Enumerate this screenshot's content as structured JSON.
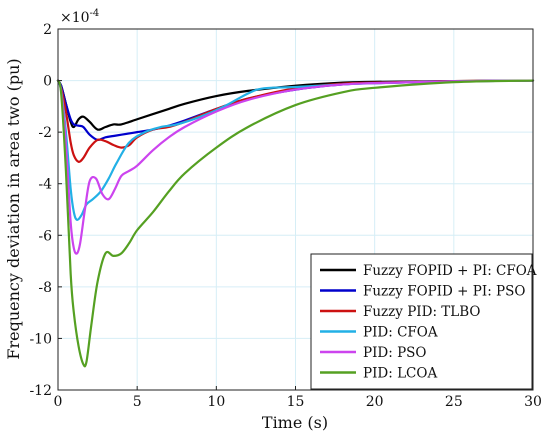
{
  "chart_data": {
    "type": "line",
    "xlabel": "Time (s)",
    "ylabel": "Frequency deviation in area two (pu)",
    "exponent_label": "×10",
    "exponent_power": "-4",
    "xlim": [
      0,
      30
    ],
    "ylim": [
      -12,
      2
    ],
    "xticks": [
      0,
      5,
      10,
      15,
      20,
      25,
      30
    ],
    "yticks": [
      2,
      0,
      -2,
      -4,
      -6,
      -8,
      -10,
      -12
    ],
    "grid": true,
    "legend_position": "bottom-right",
    "series": [
      {
        "name": "Fuzzy FOPID + PI: CFOA",
        "color": "#000000",
        "x": [
          0,
          0.2,
          0.5,
          0.8,
          1.0,
          1.3,
          1.6,
          2.0,
          2.5,
          3.0,
          3.5,
          4.0,
          5.0,
          6.0,
          7.0,
          8.0,
          10.0,
          12.0,
          15.0,
          18.0,
          20.0,
          25.0,
          30.0
        ],
        "y": [
          0,
          -0.2,
          -0.9,
          -1.6,
          -1.8,
          -1.5,
          -1.4,
          -1.6,
          -1.9,
          -1.8,
          -1.7,
          -1.7,
          -1.5,
          -1.3,
          -1.1,
          -0.9,
          -0.6,
          -0.4,
          -0.2,
          -0.08,
          -0.05,
          -0.02,
          0
        ]
      },
      {
        "name": "Fuzzy FOPID + PI: PSO",
        "color": "#0000cc",
        "x": [
          0,
          0.2,
          0.5,
          0.8,
          1.0,
          1.3,
          1.6,
          2.0,
          2.5,
          3.0,
          3.5,
          4.0,
          5.0,
          6.0,
          7.0,
          8.0,
          10.0,
          12.0,
          15.0,
          18.0,
          20.0,
          25.0,
          30.0
        ],
        "y": [
          0,
          -0.2,
          -0.9,
          -1.5,
          -1.7,
          -1.75,
          -1.8,
          -2.1,
          -2.3,
          -2.2,
          -2.15,
          -2.1,
          -2.0,
          -1.9,
          -1.75,
          -1.55,
          -1.1,
          -0.7,
          -0.35,
          -0.15,
          -0.1,
          -0.03,
          0
        ]
      },
      {
        "name": "Fuzzy PID: TLBO",
        "color": "#cc1111",
        "x": [
          0,
          0.2,
          0.5,
          0.8,
          1.0,
          1.3,
          1.6,
          2.0,
          2.5,
          3.0,
          3.5,
          4.0,
          4.5,
          5.0,
          6.0,
          7.0,
          8.0,
          10.0,
          12.0,
          15.0,
          18.0,
          20.0,
          25.0,
          30.0
        ],
        "y": [
          0,
          -0.3,
          -1.2,
          -2.4,
          -2.9,
          -3.15,
          -3.0,
          -2.6,
          -2.3,
          -2.35,
          -2.5,
          -2.6,
          -2.5,
          -2.2,
          -1.9,
          -1.8,
          -1.6,
          -1.1,
          -0.7,
          -0.3,
          -0.12,
          -0.08,
          -0.02,
          0
        ]
      },
      {
        "name": "PID: CFOA",
        "color": "#22b0e6",
        "x": [
          0,
          0.2,
          0.5,
          0.8,
          1.0,
          1.2,
          1.5,
          1.8,
          2.2,
          2.7,
          3.2,
          3.7,
          4.5,
          5.5,
          6.5,
          7.5,
          9.0,
          10.5,
          12.0,
          13.0,
          15.0,
          18.0,
          20.0,
          25.0,
          30.0
        ],
        "y": [
          0,
          -0.4,
          -2.0,
          -4.2,
          -5.1,
          -5.4,
          -5.2,
          -4.8,
          -4.6,
          -4.3,
          -3.8,
          -3.2,
          -2.4,
          -2.0,
          -1.8,
          -1.7,
          -1.4,
          -1.0,
          -0.5,
          -0.3,
          -0.25,
          -0.15,
          -0.1,
          -0.03,
          0
        ]
      },
      {
        "name": "PID: PSO",
        "color": "#cc44ee",
        "x": [
          0,
          0.2,
          0.5,
          0.8,
          1.0,
          1.2,
          1.4,
          1.7,
          2.0,
          2.4,
          2.8,
          3.2,
          3.6,
          4.0,
          4.5,
          5.0,
          6.0,
          7.0,
          8.0,
          10.0,
          12.0,
          15.0,
          18.0,
          20.0,
          25.0,
          30.0
        ],
        "y": [
          0,
          -0.4,
          -2.5,
          -5.5,
          -6.5,
          -6.7,
          -6.3,
          -5.0,
          -3.9,
          -3.8,
          -4.4,
          -4.6,
          -4.2,
          -3.7,
          -3.5,
          -3.3,
          -2.7,
          -2.2,
          -1.8,
          -1.2,
          -0.75,
          -0.35,
          -0.15,
          -0.1,
          -0.03,
          0
        ]
      },
      {
        "name": "PID: LCOA",
        "color": "#55a022",
        "x": [
          0,
          0.2,
          0.5,
          0.8,
          1.0,
          1.3,
          1.6,
          1.8,
          2.1,
          2.5,
          3.0,
          3.5,
          4.0,
          4.5,
          5.0,
          6.0,
          7.0,
          8.0,
          10.0,
          12.0,
          15.0,
          18.0,
          20.0,
          25.0,
          30.0
        ],
        "y": [
          0,
          -0.5,
          -3.5,
          -7.5,
          -9.0,
          -10.3,
          -11.0,
          -10.9,
          -9.5,
          -7.8,
          -6.7,
          -6.8,
          -6.7,
          -6.3,
          -5.8,
          -5.1,
          -4.3,
          -3.6,
          -2.6,
          -1.8,
          -0.95,
          -0.45,
          -0.28,
          -0.06,
          0
        ]
      }
    ]
  }
}
